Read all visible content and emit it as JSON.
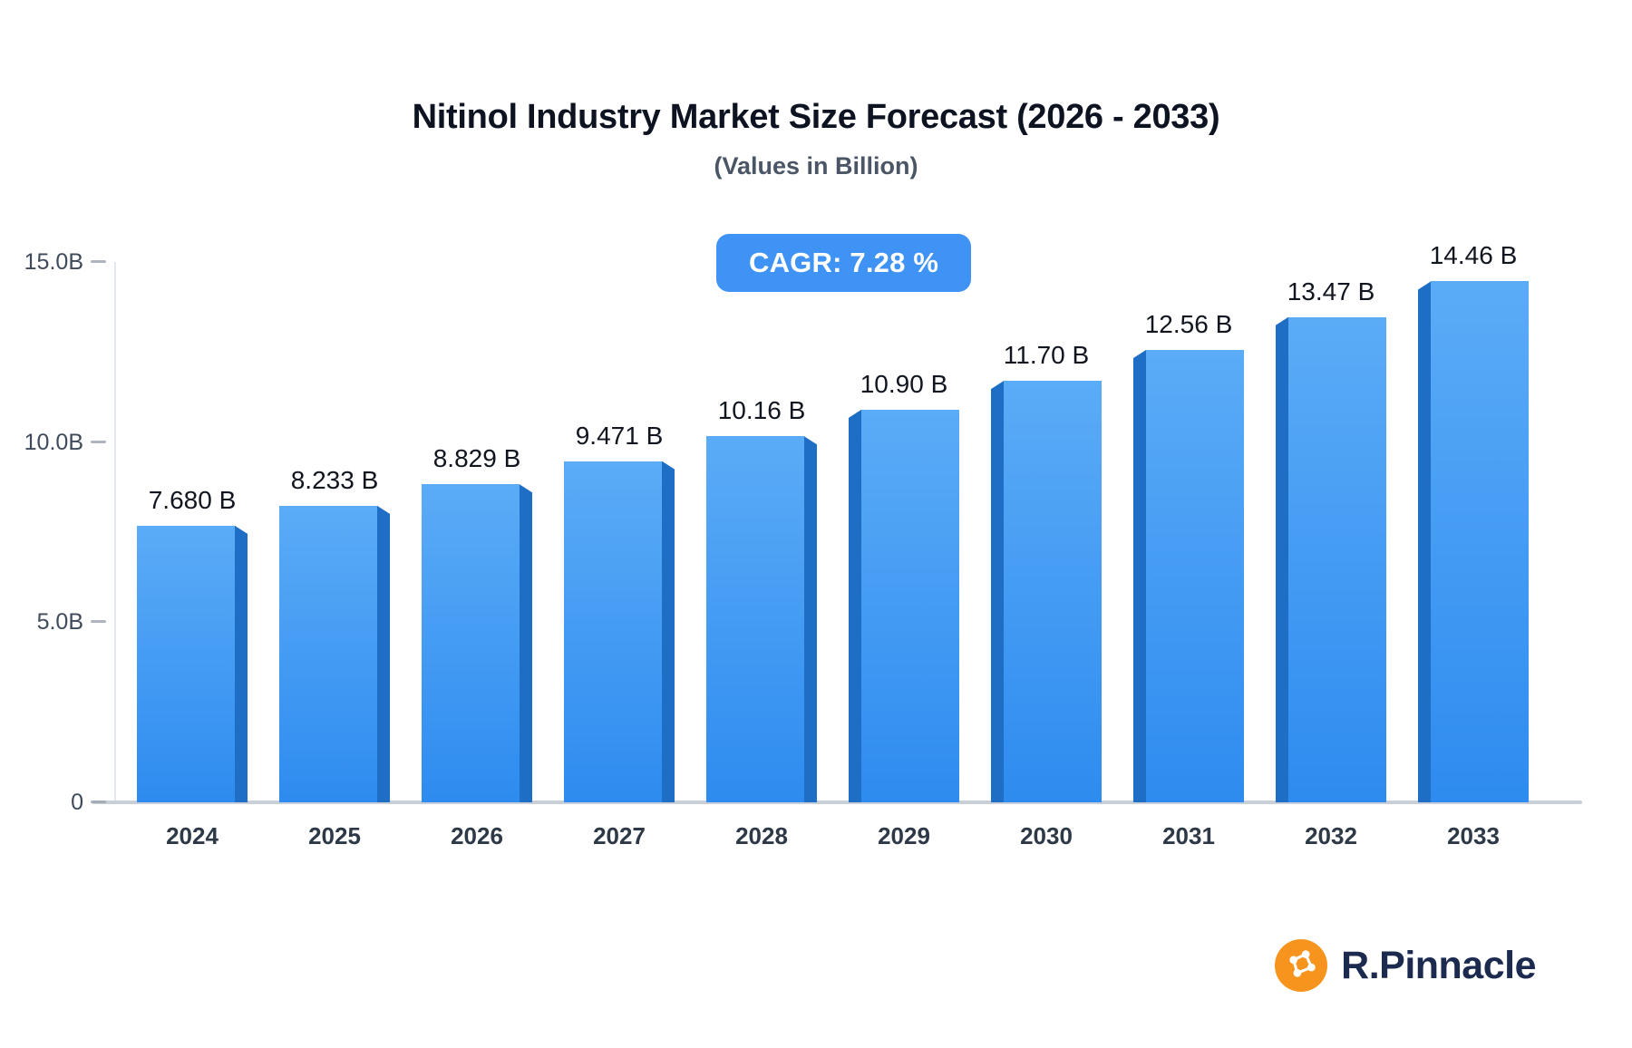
{
  "title": "Nitinol Industry Market Size Forecast (2026 - 2033)",
  "subtitle": "(Values in Billion)",
  "badge": {
    "label": "CAGR: 7.28 %"
  },
  "chart_data": {
    "type": "bar",
    "title": "Nitinol Industry Market Size Forecast (2026 - 2033)",
    "subtitle": "(Values in Billion)",
    "categories": [
      "2024",
      "2025",
      "2026",
      "2027",
      "2028",
      "2029",
      "2030",
      "2031",
      "2032",
      "2033"
    ],
    "values": [
      7.68,
      8.233,
      8.829,
      9.471,
      10.16,
      10.9,
      11.7,
      12.56,
      13.47,
      14.46
    ],
    "value_labels": [
      "7.680 B",
      "8.233 B",
      "8.829 B",
      "9.471 B",
      "10.16 B",
      "10.90 B",
      "11.70 B",
      "12.56 B",
      "13.47 B",
      "14.46 B"
    ],
    "xlabel": "",
    "ylabel": "",
    "ylim": [
      0,
      15
    ],
    "yticks": [
      {
        "value": 0,
        "label": "0"
      },
      {
        "value": 5,
        "label": "5.0B"
      },
      {
        "value": 10,
        "label": "10.0B"
      },
      {
        "value": 15,
        "label": "15.0B"
      }
    ],
    "grid": false,
    "legend": "none",
    "bar_style": "3d-extruded-blue"
  },
  "colors": {
    "badge_bg": "#3E93F4",
    "bar_front_top": "#5BACF7",
    "bar_front_bottom": "#2E8BEF",
    "bar_side": "#1E6EC6",
    "axis": "#C9CFD8",
    "brand_text": "#1B2A4E",
    "logo_icon": "#F7941D"
  },
  "logo": {
    "text": "R.Pinnacle",
    "icon": "network-molecule-icon",
    "icon_color": "#F7941D"
  }
}
